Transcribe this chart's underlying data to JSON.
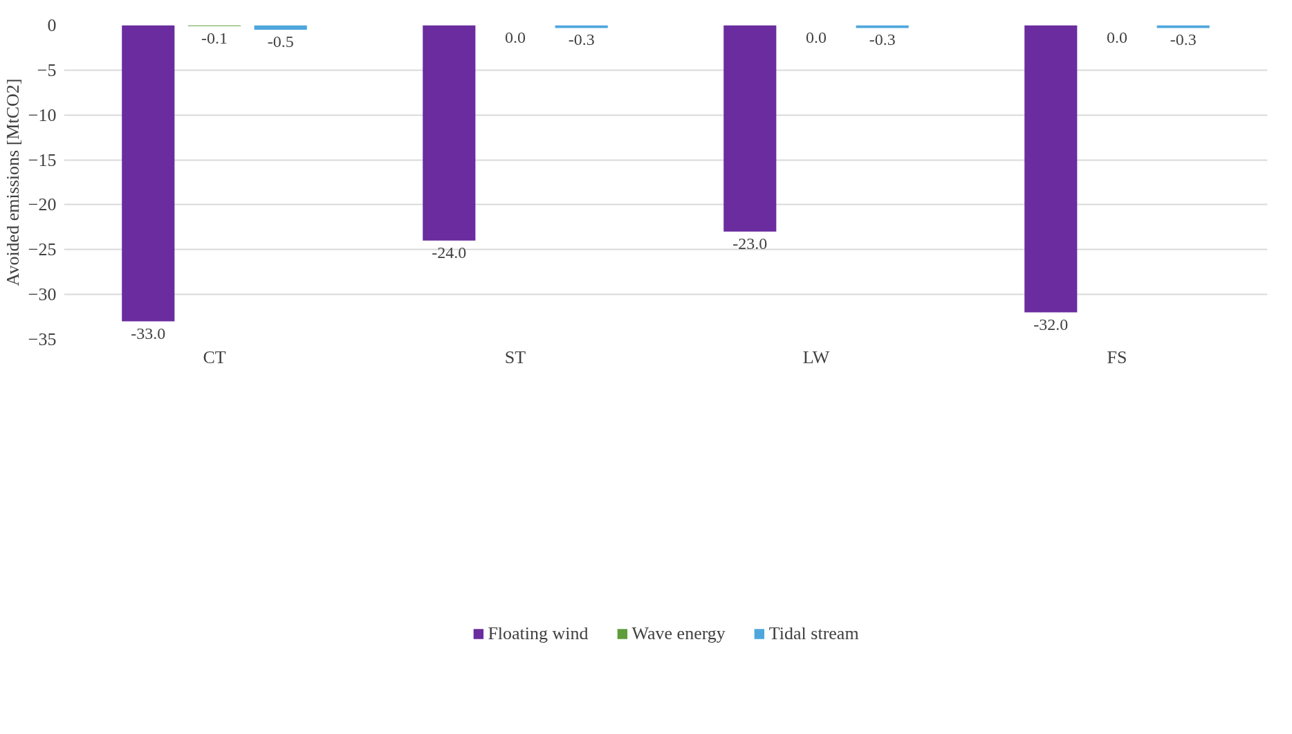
{
  "chart_data": {
    "type": "bar",
    "ylabel": "Avoided emissions [MtCO2]",
    "categories": [
      "CT",
      "ST",
      "LW",
      "FS"
    ],
    "series": [
      {
        "name": "Floating wind",
        "color": "#6a2c9e",
        "values": [
          -33.0,
          -24.0,
          -23.0,
          -32.0
        ],
        "value_labels": [
          "-33.0",
          "-24.0",
          "-23.0",
          "-32.0"
        ]
      },
      {
        "name": "Wave energy",
        "color": "#5f9c3a",
        "values": [
          -0.1,
          0.0,
          0.0,
          0.0
        ],
        "value_labels": [
          "-0.1",
          "0.0",
          "0.0",
          "0.0"
        ]
      },
      {
        "name": "Tidal stream",
        "color": "#4ea6dc",
        "values": [
          -0.5,
          -0.3,
          -0.3,
          -0.3
        ],
        "value_labels": [
          "-0.5",
          "-0.3",
          "-0.3",
          "-0.3"
        ]
      }
    ],
    "ylim": [
      -35,
      0
    ],
    "yticks": [
      -35,
      -30,
      -25,
      -20,
      -15,
      -10,
      -5,
      0
    ],
    "grid": "y",
    "legend": "bottom"
  }
}
